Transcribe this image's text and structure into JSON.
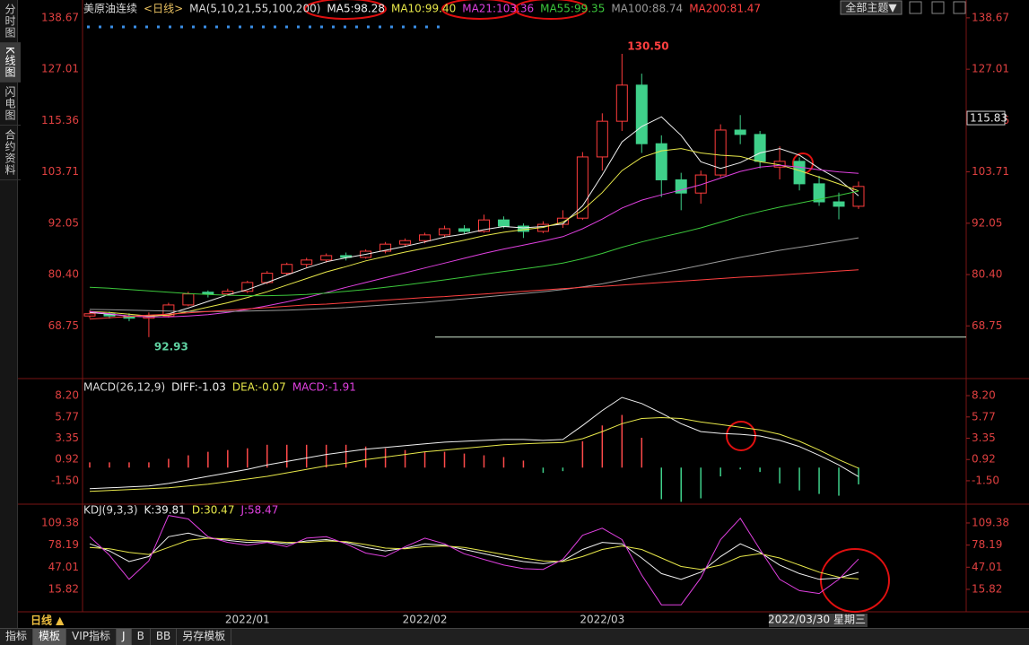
{
  "chart_data": [
    {
      "type": "candlestick",
      "title": "美原油连续",
      "period": "<日线>",
      "indicator": "MA(5,10,21,55,100,200)",
      "categories": [
        null,
        null,
        null,
        null,
        null,
        null,
        null,
        null,
        "2022/01",
        null,
        null,
        null,
        null,
        null,
        null,
        null,
        null,
        "2022/02",
        null,
        null,
        null,
        null,
        null,
        null,
        null,
        null,
        "2022/03",
        null,
        null,
        null,
        null,
        null,
        null,
        null,
        null,
        null,
        null,
        null,
        null,
        "2022/03/30 星期三"
      ],
      "ohlc": [
        [
          71.0,
          72.3,
          70.5,
          71.5
        ],
        [
          71.5,
          72.0,
          70.4,
          71.0
        ],
        [
          71.0,
          71.6,
          69.8,
          70.5
        ],
        [
          70.5,
          71.8,
          66.2,
          71.0
        ],
        [
          71.0,
          74.0,
          70.6,
          73.5
        ],
        [
          73.5,
          76.5,
          73.2,
          76.0
        ],
        [
          76.4,
          76.8,
          75.2,
          76.0
        ],
        [
          76.0,
          77.2,
          75.6,
          76.6
        ],
        [
          76.6,
          79.0,
          76.2,
          78.6
        ],
        [
          78.6,
          81.2,
          78.2,
          80.7
        ],
        [
          80.7,
          83.1,
          80.3,
          82.7
        ],
        [
          82.7,
          84.2,
          82.0,
          83.7
        ],
        [
          83.7,
          85.2,
          83.1,
          84.7
        ],
        [
          84.7,
          85.4,
          83.6,
          84.3
        ],
        [
          84.3,
          86.1,
          84.0,
          85.7
        ],
        [
          85.7,
          87.8,
          85.2,
          87.3
        ],
        [
          87.3,
          88.6,
          86.7,
          88.1
        ],
        [
          88.1,
          89.9,
          87.5,
          89.4
        ],
        [
          89.4,
          91.5,
          88.9,
          90.8
        ],
        [
          90.8,
          91.6,
          89.7,
          90.2
        ],
        [
          90.2,
          94.0,
          89.9,
          92.8
        ],
        [
          92.8,
          93.6,
          90.9,
          91.4
        ],
        [
          91.4,
          92.0,
          88.7,
          90.2
        ],
        [
          90.2,
          92.5,
          89.8,
          91.8
        ],
        [
          91.8,
          95.0,
          91.0,
          93.2
        ],
        [
          93.2,
          108.2,
          92.8,
          107.1
        ],
        [
          107.1,
          117.0,
          104.0,
          115.2
        ],
        [
          115.2,
          130.5,
          113.0,
          123.4
        ],
        [
          123.4,
          126.0,
          108.0,
          110.1
        ],
        [
          110.1,
          112.0,
          98.0,
          101.9
        ],
        [
          101.9,
          103.5,
          95.0,
          98.9
        ],
        [
          98.9,
          104.0,
          96.5,
          103.0
        ],
        [
          103.0,
          114.5,
          102.5,
          113.2
        ],
        [
          113.2,
          116.6,
          110.0,
          112.2
        ],
        [
          112.2,
          113.0,
          104.5,
          106.1
        ],
        [
          104.8,
          109.5,
          102.0,
          106.1
        ],
        [
          106.1,
          107.0,
          99.5,
          101.0
        ],
        [
          101.0,
          102.8,
          96.0,
          96.9
        ],
        [
          96.9,
          99.0,
          92.93,
          95.9
        ],
        [
          95.9,
          101.5,
          95.3,
          100.4
        ]
      ],
      "up_color": "#ff3c3c",
      "down_color": "#3fd08a",
      "series": [
        {
          "name": "MA5:98.28",
          "color": "#f0f0f0",
          "values": [
            71.8,
            71.4,
            71.0,
            70.8,
            71.5,
            72.8,
            74.3,
            75.8,
            77.0,
            78.6,
            80.3,
            81.9,
            83.3,
            84.2,
            85.0,
            85.9,
            86.8,
            87.8,
            88.9,
            89.6,
            90.6,
            91.3,
            91.0,
            91.3,
            91.9,
            96.0,
            103.0,
            110.5,
            114.0,
            116.2,
            112.0,
            106.0,
            104.5,
            105.8,
            108.0,
            109.0,
            107.5,
            104.5,
            102.0,
            98.28
          ]
        },
        {
          "name": "MA10:99.40",
          "color": "#e8e84a",
          "values": [
            72,
            71.8,
            71.4,
            71.0,
            71.2,
            72.0,
            73.0,
            74.0,
            75.2,
            76.5,
            78.0,
            79.5,
            81.0,
            82.2,
            83.5,
            84.5,
            85.5,
            86.4,
            87.3,
            88.2,
            89.2,
            90.0,
            90.6,
            91.1,
            92.3,
            95.0,
            99.0,
            104.0,
            107.0,
            108.5,
            109.0,
            108.0,
            107.5,
            107.2,
            106.0,
            105.3,
            104.0,
            102.5,
            101.0,
            99.4
          ]
        },
        {
          "name": "MA21:103.36",
          "color": "#e040e0",
          "values": [
            72,
            71.5,
            71,
            70.8,
            70.8,
            71,
            71.3,
            71.8,
            72.5,
            73.3,
            74.2,
            75.2,
            76.3,
            77.5,
            78.6,
            79.7,
            80.8,
            81.9,
            83.0,
            84.1,
            85.2,
            86.2,
            87.1,
            88.0,
            89.0,
            90.8,
            93.0,
            95.5,
            97.3,
            98.5,
            99.6,
            100.8,
            102.3,
            103.8,
            104.8,
            105.2,
            104.8,
            104.2,
            103.7,
            103.36
          ]
        },
        {
          "name": "MA55:99.35",
          "color": "#3cc83c",
          "values": [
            77.5,
            77.3,
            77.0,
            76.7,
            76.4,
            76.1,
            75.9,
            75.7,
            75.6,
            75.6,
            75.7,
            75.9,
            76.2,
            76.6,
            77.0,
            77.5,
            78.0,
            78.6,
            79.2,
            79.8,
            80.5,
            81.1,
            81.7,
            82.3,
            83.0,
            84.0,
            85.2,
            86.6,
            87.8,
            88.9,
            89.9,
            91.0,
            92.3,
            93.6,
            94.7,
            95.7,
            96.6,
            97.5,
            98.4,
            99.35
          ]
        },
        {
          "name": "MA100:88.74",
          "color": "#9a9a9a",
          "values": [
            72.5,
            72.4,
            72.3,
            72.2,
            72.1,
            72.0,
            72.0,
            72.0,
            72.1,
            72.2,
            72.3,
            72.5,
            72.7,
            72.9,
            73.2,
            73.5,
            73.8,
            74.1,
            74.5,
            74.9,
            75.3,
            75.7,
            76.1,
            76.5,
            77.0,
            77.6,
            78.3,
            79.2,
            80.0,
            80.8,
            81.6,
            82.5,
            83.4,
            84.3,
            85.1,
            85.9,
            86.6,
            87.3,
            88.0,
            88.74
          ]
        },
        {
          "name": "MA200:81.47",
          "color": "#ff4040",
          "values": [
            70.3,
            70.6,
            70.9,
            71.2,
            71.4,
            71.7,
            72.0,
            72.3,
            72.6,
            72.9,
            73.2,
            73.5,
            73.7,
            74.0,
            74.3,
            74.6,
            74.9,
            75.2,
            75.4,
            75.7,
            76.0,
            76.3,
            76.6,
            76.9,
            77.2,
            77.5,
            77.7,
            78.0,
            78.3,
            78.6,
            78.9,
            79.2,
            79.5,
            79.8,
            80.0,
            80.3,
            80.6,
            80.9,
            81.2,
            81.47
          ]
        }
      ],
      "ylim": [
        57.2,
        141.7
      ],
      "yticks": [
        138.67,
        127.01,
        115.36,
        103.71,
        92.05,
        {
          "value": 80.4,
          "label": "80.40"
        },
        68.75
      ],
      "last_price": 115.83,
      "high_label": "130.50",
      "low_label": "92.93"
    },
    {
      "type": "combo",
      "title": "MACD(26,12,9)",
      "up_color": "#ff4a4a",
      "down_color": "#3fd08a",
      "series": [
        {
          "name": "DIFF:-1.03",
          "color": "#f0f0f0",
          "values": [
            -2.4,
            -2.3,
            -2.2,
            -2.1,
            -1.8,
            -1.4,
            -1.0,
            -0.6,
            -0.2,
            0.3,
            0.7,
            1.1,
            1.5,
            1.8,
            2.1,
            2.3,
            2.5,
            2.7,
            2.9,
            3.0,
            3.1,
            3.2,
            3.2,
            3.1,
            3.2,
            4.8,
            6.5,
            8.0,
            7.3,
            6.2,
            5.0,
            4.1,
            3.9,
            3.8,
            3.6,
            3.1,
            2.4,
            1.4,
            0.3,
            -1.03
          ]
        },
        {
          "name": "DEA:-0.07",
          "color": "#e8e84a",
          "values": [
            -2.7,
            -2.6,
            -2.5,
            -2.4,
            -2.3,
            -2.1,
            -1.9,
            -1.6,
            -1.3,
            -1.0,
            -0.6,
            -0.2,
            0.2,
            0.5,
            0.9,
            1.2,
            1.5,
            1.8,
            2.0,
            2.2,
            2.4,
            2.6,
            2.7,
            2.8,
            2.85,
            3.3,
            4.1,
            5.0,
            5.6,
            5.7,
            5.6,
            5.2,
            4.9,
            4.6,
            4.3,
            3.8,
            3.0,
            2.0,
            0.9,
            -0.07
          ]
        },
        {
          "name": "MACD:-1.91",
          "color": "#e040e0",
          "kind": "bar",
          "values": [
            0.6,
            0.6,
            0.6,
            0.6,
            1.0,
            1.4,
            1.8,
            2.0,
            2.2,
            2.6,
            2.6,
            2.6,
            2.6,
            2.6,
            2.4,
            2.2,
            2.0,
            1.8,
            1.8,
            1.6,
            1.4,
            1.2,
            0.8,
            -0.6,
            -0.4,
            3.0,
            4.8,
            6.0,
            3.4,
            -3.6,
            -3.9,
            -3.5,
            -1.0,
            -0.2,
            -0.5,
            -1.8,
            -2.6,
            -3.0,
            -3.2,
            -1.91
          ]
        }
      ],
      "ylim": [
        -3.96,
        9.53
      ],
      "yticks": [
        {
          "value": 8.2,
          "label": "8.20"
        },
        5.77,
        3.35,
        0.92,
        {
          "value": -1.5,
          "label": "-1.50"
        }
      ]
    },
    {
      "type": "line",
      "title": "KDJ(9,3,3)",
      "series": [
        {
          "name": "K:39.81",
          "color": "#f0f0f0",
          "values": [
            80,
            70,
            55,
            62,
            90,
            95,
            88,
            85,
            82,
            83,
            80,
            84,
            86,
            82,
            75,
            70,
            74,
            80,
            78,
            72,
            66,
            60,
            55,
            52,
            56,
            72,
            82,
            80,
            60,
            38,
            30,
            40,
            62,
            80,
            68,
            50,
            38,
            30,
            32,
            39.81
          ]
        },
        {
          "name": "D:30.47",
          "color": "#e8e84a",
          "values": [
            75,
            73,
            68,
            65,
            75,
            85,
            88,
            87,
            85,
            84,
            82,
            82,
            84,
            83,
            79,
            74,
            73,
            76,
            77,
            75,
            70,
            65,
            60,
            56,
            55,
            62,
            72,
            77,
            72,
            60,
            48,
            44,
            50,
            62,
            66,
            60,
            50,
            40,
            33,
            30.47
          ]
        },
        {
          "name": "J:58.47",
          "color": "#e040e0",
          "values": [
            90,
            64,
            30,
            56,
            120,
            115,
            90,
            82,
            78,
            82,
            76,
            88,
            90,
            80,
            67,
            62,
            76,
            88,
            80,
            66,
            58,
            50,
            45,
            44,
            58,
            92,
            102,
            86,
            36,
            -6,
            -6,
            32,
            86,
            116,
            72,
            30,
            14,
            10,
            30,
            58.47
          ]
        }
      ],
      "ylim": [
        -13.3,
        132.1
      ],
      "yticks": [
        109.38,
        78.19,
        47.01,
        15.82
      ]
    }
  ],
  "ui": {
    "sidebar": [
      "分时图",
      "K线图",
      "闪电图",
      "合约资料"
    ],
    "theme_button": "全部主题▼",
    "period_button": "日线 ▲",
    "bottom_tabs": [
      "指标",
      "模板",
      "VIP指标",
      "J",
      "B",
      "BB",
      "另存模板"
    ]
  }
}
